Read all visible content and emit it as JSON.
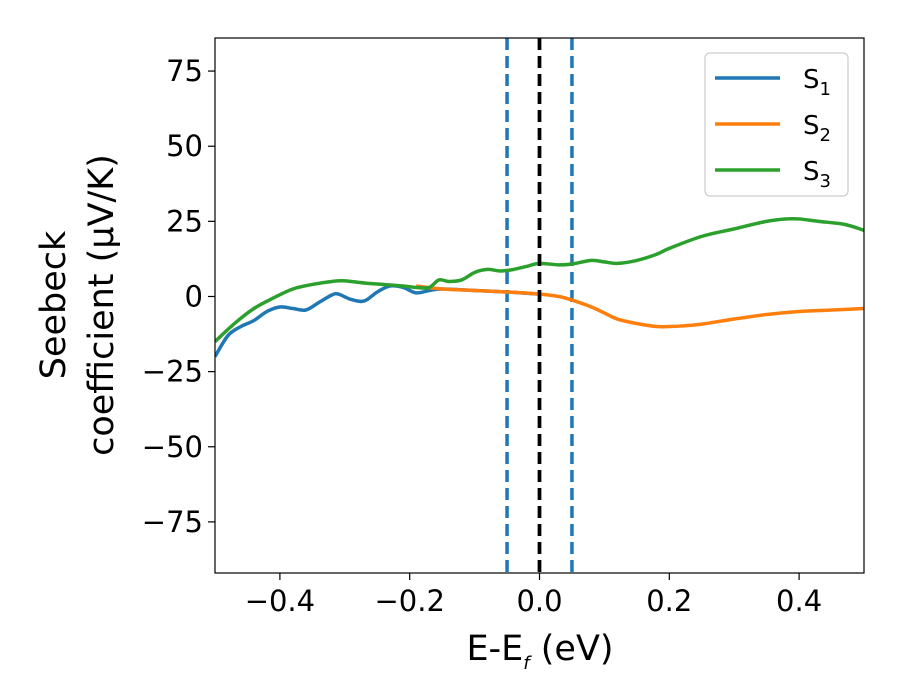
{
  "chart_data": {
    "type": "line",
    "xlabel": {
      "main": "E-E",
      "sub": "f",
      "unit": " (eV)"
    },
    "ylabel": {
      "line1": "Seebeck",
      "line2": "coefficient  (μV/K)"
    },
    "xlim": [
      -0.5,
      0.5
    ],
    "ylim": [
      -92,
      86
    ],
    "xticks": [
      -0.4,
      -0.2,
      0.0,
      0.2,
      0.4
    ],
    "xtick_labels": [
      "−0.4",
      "−0.2",
      "0.0",
      "0.2",
      "0.4"
    ],
    "yticks": [
      75,
      50,
      25,
      0,
      -25,
      -50,
      -75
    ],
    "ytick_labels": [
      "75",
      "50",
      "25",
      "0",
      "−25",
      "−50",
      "−75"
    ],
    "grid": false,
    "legend_position": "top-right",
    "vlines": [
      {
        "x": -0.05,
        "style": "dashed",
        "color": "#1f77b4"
      },
      {
        "x": 0.05,
        "style": "dashed",
        "color": "#1f77b4"
      },
      {
        "x": 0.0,
        "style": "dashed",
        "color": "#000000"
      }
    ],
    "series": [
      {
        "name": "S",
        "sub": "1",
        "color": "#1f77b4",
        "x": [
          -0.5,
          -0.48,
          -0.46,
          -0.44,
          -0.42,
          -0.4,
          -0.38,
          -0.36,
          -0.34,
          -0.32,
          -0.31,
          -0.29,
          -0.27,
          -0.25,
          -0.23,
          -0.21,
          -0.19,
          -0.17,
          -0.15,
          -0.1,
          -0.05,
          0.0
        ],
        "y": [
          -20,
          -13,
          -10,
          -8,
          -5,
          -3.5,
          -4,
          -4.5,
          -2,
          0.5,
          0.8,
          -1,
          -1.5,
          1.5,
          3.5,
          3,
          1.2,
          2,
          2.5,
          2,
          1.5,
          0.8
        ]
      },
      {
        "name": "S",
        "sub": "2",
        "color": "#ff7f0e",
        "x": [
          -0.19,
          -0.15,
          -0.1,
          -0.05,
          0.0,
          0.03,
          0.05,
          0.08,
          0.1,
          0.12,
          0.15,
          0.18,
          0.2,
          0.22,
          0.25,
          0.3,
          0.35,
          0.4,
          0.45,
          0.5
        ],
        "y": [
          3.5,
          2.5,
          2,
          1.5,
          0.8,
          0,
          -1.2,
          -3.5,
          -5.5,
          -7.5,
          -9,
          -10,
          -10,
          -9.8,
          -9.2,
          -7.5,
          -6,
          -5,
          -4.5,
          -4
        ]
      },
      {
        "name": "S",
        "sub": "3",
        "color": "#2ca02c",
        "x": [
          -0.5,
          -0.47,
          -0.44,
          -0.41,
          -0.38,
          -0.35,
          -0.32,
          -0.3,
          -0.27,
          -0.24,
          -0.21,
          -0.19,
          -0.17,
          -0.155,
          -0.14,
          -0.12,
          -0.1,
          -0.08,
          -0.06,
          -0.04,
          -0.02,
          0.0,
          0.03,
          0.05,
          0.08,
          0.1,
          0.12,
          0.15,
          0.18,
          0.2,
          0.25,
          0.3,
          0.35,
          0.38,
          0.4,
          0.43,
          0.47,
          0.5
        ],
        "y": [
          -15,
          -9,
          -4,
          -0.5,
          2.5,
          4,
          5,
          5.2,
          4.5,
          4,
          3.5,
          3,
          3,
          5.5,
          5,
          5.5,
          8,
          9,
          8.5,
          9,
          10,
          11,
          10.5,
          10.8,
          12,
          11.5,
          11,
          12,
          14,
          16,
          20,
          22.5,
          25,
          25.8,
          25.8,
          25,
          24,
          22
        ]
      }
    ]
  }
}
